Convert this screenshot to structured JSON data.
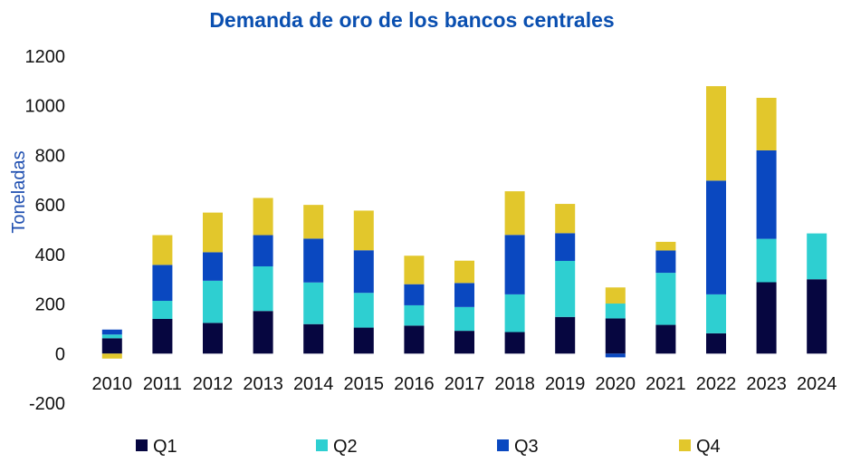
{
  "chart_data": {
    "type": "bar",
    "stacked": true,
    "title": "Demanda de oro de los bancos centrales",
    "ylabel": "Toneladas",
    "xlabel": "",
    "ylim": [
      -200,
      1200
    ],
    "yticks": [
      -200,
      0,
      200,
      400,
      600,
      800,
      1000,
      1200
    ],
    "ytick_labels": [
      "-200",
      "0",
      "200",
      "400",
      "600",
      "800",
      "1000",
      "1200"
    ],
    "categories": [
      "2010",
      "2011",
      "2012",
      "2013",
      "2014",
      "2015",
      "2016",
      "2017",
      "2018",
      "2019",
      "2020",
      "2021",
      "2022",
      "2023",
      "2024"
    ],
    "series": [
      {
        "name": "Q1",
        "color": "#060640",
        "values": [
          62,
          140,
          124,
          172,
          119,
          105,
          113,
          92,
          87,
          148,
          142,
          116,
          82,
          288,
          300
        ]
      },
      {
        "name": "Q2",
        "color": "#2ecfd1",
        "values": [
          15,
          73,
          170,
          180,
          168,
          140,
          82,
          96,
          152,
          226,
          60,
          210,
          157,
          175,
          185
        ]
      },
      {
        "name": "Q3",
        "color": "#0a48c0",
        "values": [
          20,
          145,
          115,
          126,
          177,
          172,
          85,
          97,
          240,
          112,
          -15,
          90,
          459,
          357,
          0
        ]
      },
      {
        "name": "Q4",
        "color": "#e2c72c",
        "values": [
          -20,
          120,
          160,
          150,
          136,
          160,
          115,
          90,
          176,
          118,
          65,
          35,
          381,
          212,
          0
        ]
      }
    ],
    "legend_position": "bottom"
  },
  "colors": {
    "title": "#0a4fb0",
    "ylabel": "#1f4fb0",
    "text": "#111111"
  }
}
